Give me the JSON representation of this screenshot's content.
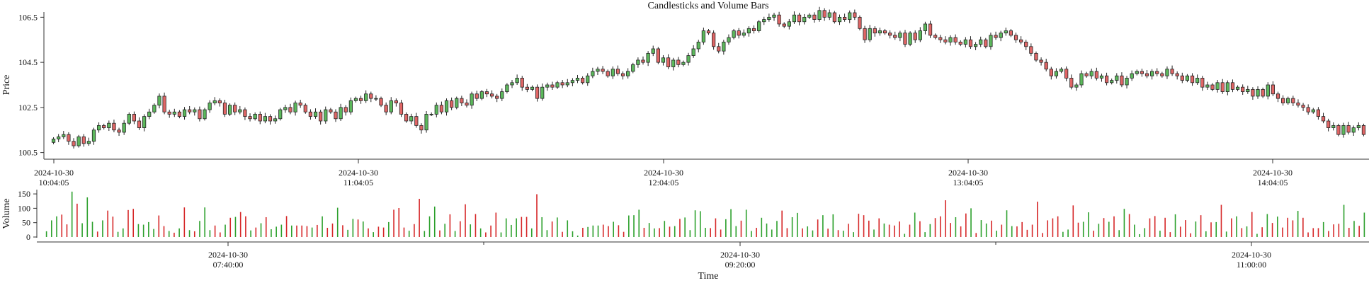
{
  "chart_data": {
    "type": "candlestick-volume",
    "title": "Candlesticks and Volume Bars",
    "price_axis": {
      "label": "Price",
      "ylim": [
        100.3,
        106.7
      ],
      "ticks": [
        "100.5",
        "102.5",
        "104.5",
        "106.5"
      ]
    },
    "volume_axis": {
      "label": "Volume",
      "ylim": [
        0,
        165
      ],
      "ticks": [
        "0",
        "50",
        "100",
        "150"
      ]
    },
    "xlabel": "Time",
    "price_time_ticks": [
      {
        "date": "2024-10-30",
        "time": "10:04:05"
      },
      {
        "date": "2024-10-30",
        "time": "11:04:05"
      },
      {
        "date": "2024-10-30",
        "time": "12:04:05"
      },
      {
        "date": "2024-10-30",
        "time": "13:04:05"
      },
      {
        "date": "2024-10-30",
        "time": "14:04:05"
      }
    ],
    "volume_time_ticks": [
      {
        "date": "2024-10-30",
        "time": "07:40:00"
      },
      {
        "date": "2024-10-30",
        "time": "09:20:00"
      },
      {
        "date": "2024-10-30",
        "time": "11:00:00"
      }
    ],
    "colors": {
      "up": "#5cb85c",
      "down": "#e06666",
      "up_volume": "#2ca02c",
      "down_volume": "#d62728",
      "edge": "#222222"
    },
    "candles_close": [
      101.1,
      101.2,
      101.3,
      101.0,
      100.8,
      101.2,
      100.9,
      101.0,
      101.5,
      101.7,
      101.6,
      101.8,
      101.5,
      101.4,
      101.8,
      102.2,
      101.9,
      101.6,
      102.1,
      102.3,
      102.6,
      103.0,
      102.3,
      102.2,
      102.3,
      102.1,
      102.4,
      102.3,
      102.4,
      102.0,
      102.4,
      102.7,
      102.8,
      102.7,
      102.2,
      102.6,
      102.3,
      102.4,
      102.1,
      102.0,
      102.2,
      101.9,
      102.1,
      101.9,
      102.0,
      102.4,
      102.5,
      102.3,
      102.7,
      102.6,
      102.3,
      102.1,
      102.3,
      101.9,
      102.4,
      102.3,
      102.0,
      102.5,
      102.3,
      102.8,
      102.9,
      102.8,
      103.1,
      102.9,
      102.9,
      102.6,
      102.3,
      102.8,
      102.7,
      102.2,
      101.9,
      102.1,
      101.7,
      101.5,
      102.2,
      102.2,
      102.6,
      102.3,
      102.8,
      102.5,
      102.9,
      102.7,
      102.6,
      103.1,
      102.9,
      103.2,
      103.1,
      103.0,
      102.9,
      103.2,
      103.5,
      103.6,
      103.8,
      103.4,
      103.3,
      103.4,
      102.9,
      103.4,
      103.5,
      103.4,
      103.6,
      103.5,
      103.6,
      103.7,
      103.8,
      103.6,
      103.9,
      104.1,
      104.2,
      104.1,
      103.9,
      104.2,
      104.0,
      103.9,
      104.1,
      104.4,
      104.6,
      104.5,
      104.9,
      105.1,
      104.5,
      104.7,
      104.3,
      104.6,
      104.4,
      104.5,
      104.8,
      105.1,
      105.4,
      105.9,
      105.8,
      105.2,
      105.0,
      105.4,
      105.6,
      105.9,
      105.7,
      105.8,
      106.0,
      105.9,
      106.3,
      106.4,
      106.5,
      106.6,
      106.2,
      106.1,
      106.3,
      106.6,
      106.3,
      106.5,
      106.6,
      106.4,
      106.8,
      106.5,
      106.7,
      106.3,
      106.5,
      106.4,
      106.7,
      106.5,
      106.0,
      105.5,
      106.0,
      105.8,
      105.9,
      105.8,
      105.7,
      105.6,
      105.8,
      105.3,
      105.8,
      105.5,
      105.9,
      106.2,
      105.7,
      105.6,
      105.5,
      105.4,
      105.6,
      105.4,
      105.3,
      105.5,
      105.2,
      105.3,
      105.5,
      105.2,
      105.7,
      105.6,
      105.8,
      105.9,
      105.7,
      105.5,
      105.4,
      105.2,
      104.9,
      104.6,
      104.5,
      104.2,
      103.9,
      104.1,
      104.2,
      103.8,
      103.4,
      103.5,
      104.0,
      103.9,
      104.1,
      103.8,
      103.9,
      103.6,
      103.7,
      103.9,
      103.5,
      103.8,
      104.0,
      104.1,
      104.0,
      103.9,
      104.1,
      104.0,
      103.9,
      104.2,
      104.0,
      103.9,
      103.7,
      103.9,
      103.6,
      103.8,
      103.4,
      103.5,
      103.3,
      103.6,
      103.2,
      103.6,
      103.3,
      103.4,
      103.2,
      103.3,
      103.0,
      103.3,
      103.0,
      103.5,
      103.1,
      102.9,
      102.7,
      102.9,
      102.7,
      102.6,
      102.5,
      102.3,
      102.4,
      102.1,
      101.9,
      101.6,
      101.7,
      101.3,
      101.7,
      101.4,
      101.6,
      101.7,
      101.3
    ],
    "volumes": [
      20,
      58,
      72,
      78,
      44,
      158,
      116,
      48,
      138,
      53,
      19,
      58,
      92,
      71,
      18,
      30,
      94,
      98,
      45,
      43,
      52,
      28,
      75,
      38,
      21,
      15,
      30,
      103,
      24,
      20,
      56,
      103,
      24,
      40,
      16,
      43,
      67,
      70,
      87,
      72,
      23,
      33,
      48,
      69,
      27,
      36,
      43,
      73,
      40,
      40,
      40,
      38,
      33,
      42,
      72,
      32,
      47,
      102,
      41,
      25,
      63,
      61,
      54,
      30,
      17,
      36,
      33,
      52,
      95,
      101,
      33,
      22,
      45,
      133,
      21,
      72,
      106,
      23,
      46,
      79,
      21,
      55,
      114,
      44,
      80,
      30,
      16,
      40,
      85,
      16,
      65,
      42,
      65,
      70,
      70,
      30,
      149,
      69,
      24,
      54,
      68,
      18,
      58,
      20,
      5,
      32,
      35,
      40,
      40,
      43,
      38,
      53,
      41,
      18,
      75,
      76,
      95,
      32,
      49,
      30,
      31,
      56,
      36,
      38,
      63,
      68,
      24,
      93,
      90,
      32,
      31,
      65,
      26,
      62,
      97,
      38,
      57,
      95,
      21,
      32,
      67,
      47,
      26,
      56,
      92,
      31,
      69,
      84,
      30,
      37,
      23,
      61,
      76,
      29,
      79,
      24,
      22,
      46,
      17,
      81,
      76,
      57,
      26,
      65,
      47,
      43,
      40,
      54,
      11,
      43,
      85,
      55,
      17,
      45,
      66,
      72,
      128,
      49,
      69,
      37,
      82,
      100,
      14,
      59,
      47,
      57,
      22,
      43,
      93,
      38,
      37,
      52,
      25,
      43,
      123,
      14,
      58,
      65,
      72,
      18,
      26,
      110,
      50,
      53,
      86,
      22,
      46,
      66,
      53,
      72,
      24,
      98,
      80,
      43,
      10,
      31,
      65,
      73,
      22,
      67,
      17,
      79,
      36,
      59,
      13,
      54,
      76,
      20,
      51,
      52,
      112,
      19,
      65,
      72,
      31,
      37,
      87,
      11,
      34,
      80,
      49,
      71,
      33,
      67,
      58,
      91,
      67,
      16,
      31,
      31,
      52,
      21,
      44,
      46,
      112,
      32,
      56,
      39,
      85
    ]
  }
}
